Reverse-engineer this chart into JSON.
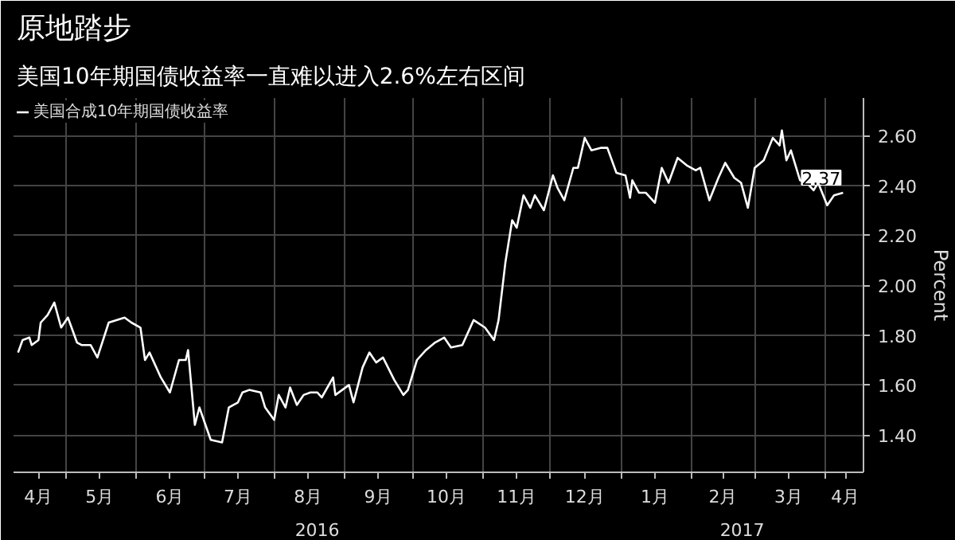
{
  "chart_data": {
    "type": "line",
    "title": "原地踏步",
    "subtitle": "美国10年期国债收益率一直难以进入2.6%左右区间",
    "ylabel": "Percent",
    "x": [
      "2016-04-10",
      "2016-04-12",
      "2016-04-15",
      "2016-04-16",
      "2016-04-19",
      "2016-04-20",
      "2016-04-23",
      "2016-04-26",
      "2016-04-29",
      "2016-05-02",
      "2016-05-06",
      "2016-05-08",
      "2016-05-12",
      "2016-05-15",
      "2016-05-20",
      "2016-05-27",
      "2016-05-30",
      "2016-06-03",
      "2016-06-05",
      "2016-06-07",
      "2016-06-12",
      "2016-06-16",
      "2016-06-20",
      "2016-06-23",
      "2016-06-24",
      "2016-06-27",
      "2016-06-29",
      "2016-07-04",
      "2016-07-09",
      "2016-07-12",
      "2016-07-16",
      "2016-07-18",
      "2016-07-21",
      "2016-07-26",
      "2016-07-28",
      "2016-08-01",
      "2016-08-03",
      "2016-08-06",
      "2016-08-08",
      "2016-08-11",
      "2016-08-14",
      "2016-08-17",
      "2016-08-20",
      "2016-08-22",
      "2016-08-27",
      "2016-08-28",
      "2016-09-03",
      "2016-09-05",
      "2016-09-09",
      "2016-09-12",
      "2016-09-15",
      "2016-09-18",
      "2016-09-23",
      "2016-09-27",
      "2016-09-29",
      "2016-10-03",
      "2016-10-07",
      "2016-10-11",
      "2016-10-15",
      "2016-10-18",
      "2016-10-23",
      "2016-10-28",
      "2016-11-02",
      "2016-11-06",
      "2016-11-08",
      "2016-11-11",
      "2016-11-14",
      "2016-11-16",
      "2016-11-19",
      "2016-11-22",
      "2016-11-24",
      "2016-11-28",
      "2016-12-02",
      "2016-12-04",
      "2016-12-07",
      "2016-12-11",
      "2016-12-13",
      "2016-12-16",
      "2016-12-19",
      "2016-12-23",
      "2016-12-26",
      "2016-12-30",
      "2017-01-03",
      "2017-01-05",
      "2017-01-06",
      "2017-01-09",
      "2017-01-12",
      "2017-01-16",
      "2017-01-19",
      "2017-01-22",
      "2017-01-26",
      "2017-01-30",
      "2017-02-03",
      "2017-02-05",
      "2017-02-09",
      "2017-02-13",
      "2017-02-16",
      "2017-02-20",
      "2017-02-23",
      "2017-02-26",
      "2017-03-01",
      "2017-03-05",
      "2017-03-09",
      "2017-03-12",
      "2017-03-13",
      "2017-03-15",
      "2017-03-17",
      "2017-03-21",
      "2017-03-24",
      "2017-03-27",
      "2017-03-29",
      "2017-04-02",
      "2017-04-05",
      "2017-04-09"
    ],
    "series": [
      {
        "name": "美国合成10年期国债收益率",
        "color": "#ffffff",
        "values": [
          1.73,
          1.78,
          1.79,
          1.76,
          1.78,
          1.85,
          1.88,
          1.93,
          1.83,
          1.87,
          1.77,
          1.76,
          1.76,
          1.71,
          1.85,
          1.87,
          1.85,
          1.83,
          1.7,
          1.73,
          1.63,
          1.57,
          1.7,
          1.7,
          1.74,
          1.44,
          1.51,
          1.38,
          1.37,
          1.51,
          1.53,
          1.57,
          1.58,
          1.57,
          1.51,
          1.46,
          1.56,
          1.51,
          1.59,
          1.52,
          1.56,
          1.57,
          1.57,
          1.55,
          1.63,
          1.56,
          1.6,
          1.53,
          1.67,
          1.73,
          1.69,
          1.71,
          1.62,
          1.56,
          1.58,
          1.7,
          1.74,
          1.77,
          1.79,
          1.75,
          1.76,
          1.86,
          1.83,
          1.78,
          1.86,
          2.09,
          2.26,
          2.23,
          2.36,
          2.31,
          2.36,
          2.3,
          2.44,
          2.39,
          2.34,
          2.47,
          2.47,
          2.59,
          2.54,
          2.55,
          2.55,
          2.45,
          2.44,
          2.35,
          2.42,
          2.37,
          2.37,
          2.33,
          2.47,
          2.41,
          2.51,
          2.48,
          2.46,
          2.47,
          2.34,
          2.43,
          2.49,
          2.43,
          2.41,
          2.31,
          2.47,
          2.5,
          2.59,
          2.56,
          2.62,
          2.5,
          2.54,
          2.42,
          2.41,
          2.38,
          2.41,
          2.32,
          2.36,
          2.37
        ],
        "value_labels": [
          null,
          null,
          null,
          null,
          null,
          null,
          null,
          null,
          null,
          null,
          null,
          null,
          null,
          null,
          null,
          null,
          null,
          null,
          null,
          null,
          null,
          null,
          null,
          null,
          null,
          null,
          null,
          null,
          null,
          null,
          null,
          null,
          null,
          null,
          null,
          null,
          null,
          null,
          null,
          null,
          null,
          null,
          null,
          null,
          null,
          null,
          null,
          null,
          null,
          null,
          null,
          null,
          null,
          null,
          null,
          null,
          null,
          null,
          null,
          null,
          null,
          null,
          null,
          null,
          null,
          null,
          null,
          null,
          null,
          null,
          null,
          null,
          null,
          null,
          null,
          null,
          null,
          null,
          null,
          null,
          null,
          null,
          null,
          null,
          null,
          null,
          null,
          null,
          null,
          null,
          null,
          null,
          null,
          null,
          null,
          null,
          null,
          null,
          null,
          null,
          null,
          null,
          null,
          null,
          null,
          null,
          null,
          null,
          null,
          null,
          null,
          null,
          null,
          "2.37"
        ]
      }
    ],
    "xlim": [
      "2016-04-08",
      "2017-04-18"
    ],
    "xticks": [
      {
        "value": "2016-04-19",
        "label": "4月"
      },
      {
        "value": "2016-05-01",
        "label": null
      },
      {
        "value": "2016-05-16",
        "label": "5月"
      },
      {
        "value": "2016-06-01",
        "label": null
      },
      {
        "value": "2016-06-16",
        "label": "6月"
      },
      {
        "value": "2016-07-01",
        "label": null
      },
      {
        "value": "2016-07-16",
        "label": "7月"
      },
      {
        "value": "2016-08-01",
        "label": null
      },
      {
        "value": "2016-08-16",
        "label": "8月"
      },
      {
        "value": "2016-09-01",
        "label": null
      },
      {
        "value": "2016-09-16",
        "label": "9月"
      },
      {
        "value": "2016-10-01",
        "label": null
      },
      {
        "value": "2016-10-16",
        "label": "10月"
      },
      {
        "value": "2016-11-01",
        "label": null
      },
      {
        "value": "2016-11-16",
        "label": "11月"
      },
      {
        "value": "2016-12-01",
        "label": null
      },
      {
        "value": "2016-12-16",
        "label": "12月"
      },
      {
        "value": "2017-01-01",
        "label": null
      },
      {
        "value": "2017-01-16",
        "label": "1月"
      },
      {
        "value": "2017-02-01",
        "label": null
      },
      {
        "value": "2017-02-15",
        "label": "2月"
      },
      {
        "value": "2017-03-01",
        "label": null
      },
      {
        "value": "2017-03-16",
        "label": "3月"
      },
      {
        "value": "2017-04-01",
        "label": null
      },
      {
        "value": "2017-04-10",
        "label": "4月"
      }
    ],
    "ylim": [
      1.25,
      2.75
    ],
    "yticks": [
      {
        "value": 1.4,
        "label": "1.40"
      },
      {
        "value": 1.6,
        "label": "1.60"
      },
      {
        "value": 1.8,
        "label": "1.80"
      },
      {
        "value": 2.0,
        "label": "2.00"
      },
      {
        "value": 2.2,
        "label": "2.20"
      },
      {
        "value": 2.4,
        "label": "2.40"
      },
      {
        "value": 2.6,
        "label": "2.60"
      }
    ],
    "annotations": [
      "2016",
      "2017"
    ],
    "grid": true,
    "legend": "top left",
    "marker": "none",
    "line_style": "solid"
  }
}
